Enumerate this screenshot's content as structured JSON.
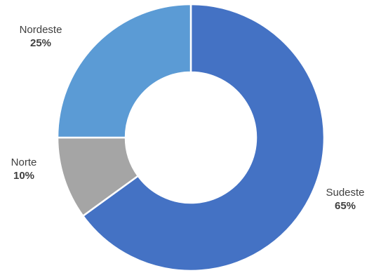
{
  "chart_data": {
    "type": "pie",
    "variant": "donut",
    "legend": "none",
    "categories": [
      "Sudeste",
      "Norte",
      "Nordeste"
    ],
    "values": [
      65,
      10,
      25
    ],
    "value_labels": [
      "65%",
      "10%",
      "25%"
    ],
    "colors": [
      "#4472C4",
      "#A5A5A5",
      "#5B9BD5"
    ],
    "slice_border_color": "#FFFFFF",
    "title": ""
  }
}
